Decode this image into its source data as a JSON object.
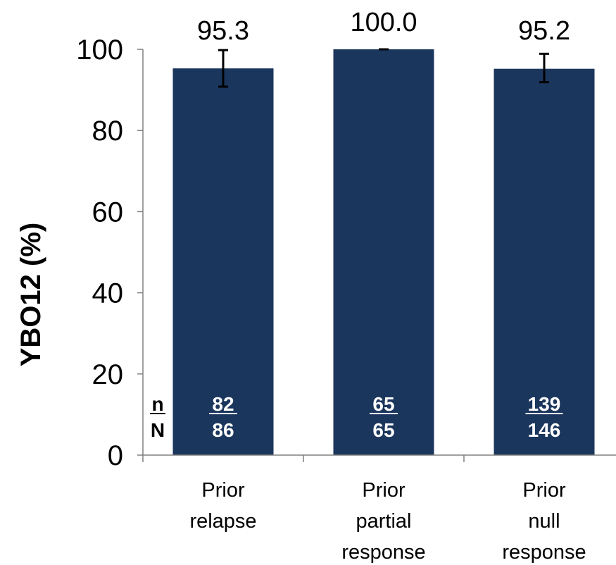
{
  "chart_data": {
    "type": "bar",
    "title": "",
    "xlabel": "",
    "ylabel": "YBO12 (%)",
    "ylim": [
      0,
      100
    ],
    "yticks": [
      0,
      20,
      40,
      60,
      80,
      100
    ],
    "grid": false,
    "legend": "none",
    "bar_color": "#1b365d",
    "categories": [
      [
        "Prior",
        "relapse"
      ],
      [
        "Prior",
        "partial",
        "response"
      ],
      [
        "Prior",
        "null",
        "response"
      ]
    ],
    "values": [
      95.3,
      100.0,
      95.2
    ],
    "value_labels": [
      "95.3",
      "100.0",
      "95.2"
    ],
    "error_bars": [
      {
        "low": 90.8,
        "high": 99.8
      },
      {
        "low": 100.0,
        "high": 100.0
      },
      {
        "low": 91.9,
        "high": 98.9
      }
    ],
    "counts": {
      "n_label": "n",
      "N_label": "N",
      "n": [
        "82",
        "65",
        "139"
      ],
      "N": [
        "86",
        "65",
        "146"
      ]
    }
  }
}
